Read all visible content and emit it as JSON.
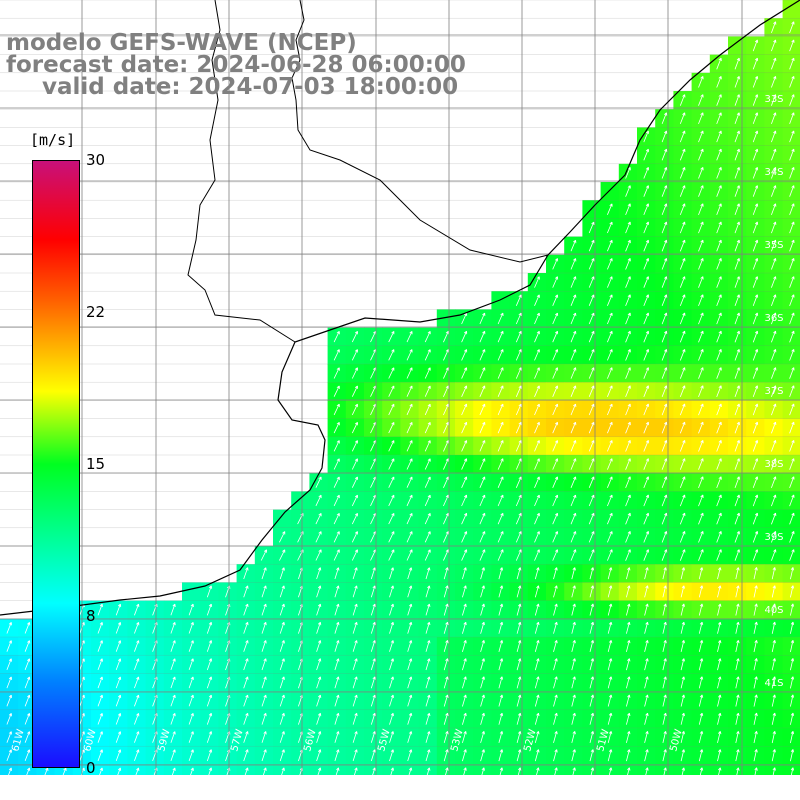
{
  "title": {
    "line1": "modelo GEFS-WAVE (NCEP)",
    "line2": "forecast date: 2024-06-28 06:00:00",
    "line3": "valid date: 2024-07-03 18:00:00"
  },
  "colorbar": {
    "unit": "[m/s]",
    "min": 0,
    "max": 30,
    "ticks": [
      "30",
      "22",
      "15",
      "8",
      "0"
    ],
    "colors": [
      "#1a0dff",
      "#0080ff",
      "#00ffff",
      "#00ff20",
      "#ffff00",
      "#ff6000",
      "#ff0000",
      "#c8107a"
    ]
  },
  "map": {
    "lat_labels": [
      "33S",
      "34S",
      "35S",
      "36S",
      "37S",
      "38S",
      "39S",
      "40S",
      "41S"
    ],
    "lon_labels": [
      "61W",
      "60W",
      "59W",
      "57W",
      "56W",
      "55W",
      "53W",
      "52W",
      "51W",
      "50W"
    ],
    "variable": "wind speed",
    "colors": {
      "land": "#ffffff",
      "grid": "#808080",
      "coast": "#000000",
      "arrow": "#ffffff"
    }
  }
}
